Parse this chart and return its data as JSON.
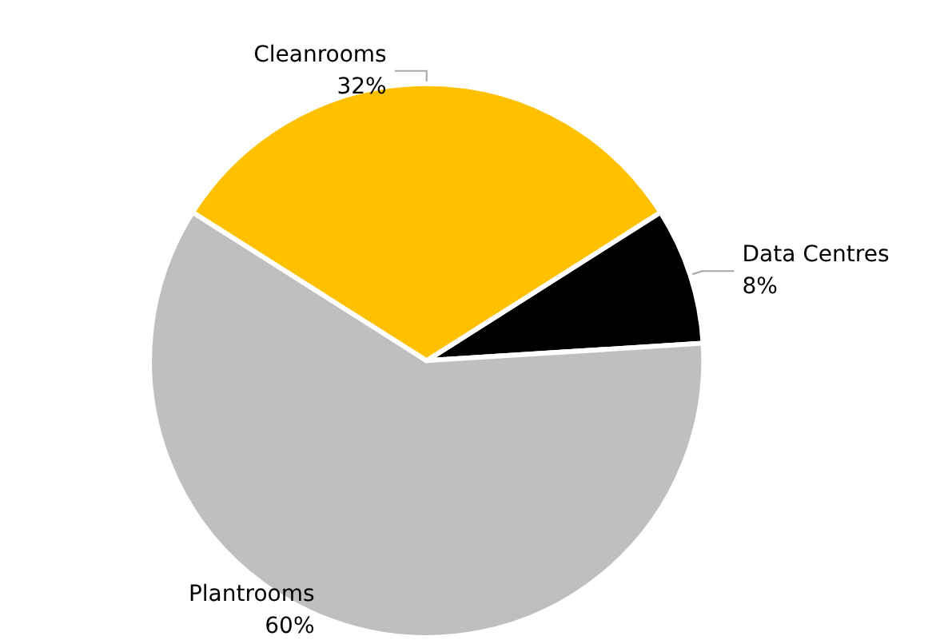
{
  "chart_data": {
    "type": "pie",
    "categories": [
      "Data Centres",
      "Plantrooms",
      "Cleanrooms"
    ],
    "values": [
      8,
      60,
      32
    ],
    "colors": [
      "#000000",
      "#bfbfbf",
      "#ffc000"
    ],
    "value_labels": [
      "8%",
      "60%",
      "32%"
    ],
    "legend": false
  }
}
